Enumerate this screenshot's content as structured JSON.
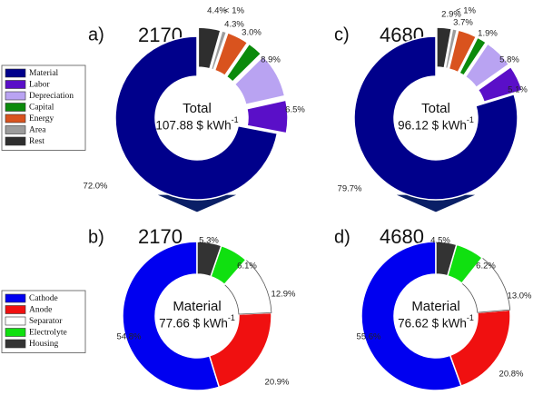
{
  "legends": [
    {
      "items": [
        {
          "label": "Material",
          "color": "#00008B"
        },
        {
          "label": "Labor",
          "color": "#5A0FC8"
        },
        {
          "label": "Depreciation",
          "color": "#B9A3F2"
        },
        {
          "label": "Capital",
          "color": "#0B8A0B"
        },
        {
          "label": "Energy",
          "color": "#D9531E"
        },
        {
          "label": "Area",
          "color": "#9C9C9C"
        },
        {
          "label": "Rest",
          "color": "#2E2E2E"
        }
      ]
    },
    {
      "items": [
        {
          "label": "Cathode",
          "color": "#0000F0"
        },
        {
          "label": "Anode",
          "color": "#F01010"
        },
        {
          "label": "Separator",
          "color": "#FFFFFF"
        },
        {
          "label": "Electrolyte",
          "color": "#10E010"
        },
        {
          "label": "Housing",
          "color": "#333333"
        }
      ]
    }
  ],
  "arrows": {
    "color": "#0A1F66"
  },
  "chart_data": [
    {
      "type": "pie",
      "panel_letter": "a)",
      "title": "2170",
      "center_label": "Total",
      "center_value": "107.88 $ kWh",
      "center_unit_exp": "-1",
      "slices": [
        {
          "category": "Material",
          "value": 72.0,
          "label": "72.0%",
          "exploded": false
        },
        {
          "category": "Labor",
          "value": 6.5,
          "label": "6.5%",
          "exploded": true
        },
        {
          "category": "Depreciation",
          "value": 8.9,
          "label": "8.9%",
          "exploded": true
        },
        {
          "category": "Capital",
          "value": 3.0,
          "label": "3.0%",
          "exploded": true
        },
        {
          "category": "Energy",
          "value": 4.3,
          "label": "4.3%",
          "exploded": true
        },
        {
          "category": "Area",
          "value": 0.9,
          "label": "< 1%",
          "exploded": true
        },
        {
          "category": "Rest",
          "value": 4.4,
          "label": "4.4%",
          "exploded": true
        }
      ]
    },
    {
      "type": "pie",
      "panel_letter": "c)",
      "title": "4680",
      "center_label": "Total",
      "center_value": "96.12 $ kWh",
      "center_unit_exp": "-1",
      "slices": [
        {
          "category": "Material",
          "value": 79.7,
          "label": "79.7%",
          "exploded": false
        },
        {
          "category": "Labor",
          "value": 5.1,
          "label": "5.1%",
          "exploded": true
        },
        {
          "category": "Depreciation",
          "value": 5.8,
          "label": "5.8%",
          "exploded": true
        },
        {
          "category": "Capital",
          "value": 1.9,
          "label": "1.9%",
          "exploded": true
        },
        {
          "category": "Energy",
          "value": 3.7,
          "label": "3.7%",
          "exploded": true
        },
        {
          "category": "Area",
          "value": 0.9,
          "label": "< 1%",
          "exploded": true
        },
        {
          "category": "Rest",
          "value": 2.9,
          "label": "2.9%",
          "exploded": true
        }
      ]
    },
    {
      "type": "pie",
      "panel_letter": "b)",
      "title": "2170",
      "center_label": "Material",
      "center_value": "77.66 $ kWh",
      "center_unit_exp": "-1",
      "slices": [
        {
          "category": "Cathode",
          "value": 54.8,
          "label": "54.8%",
          "exploded": false
        },
        {
          "category": "Anode",
          "value": 20.9,
          "label": "20.9%",
          "exploded": false
        },
        {
          "category": "Separator",
          "value": 12.9,
          "label": "12.9%",
          "exploded": false
        },
        {
          "category": "Electrolyte",
          "value": 6.1,
          "label": "6.1%",
          "exploded": false
        },
        {
          "category": "Housing",
          "value": 5.3,
          "label": "5.3%",
          "exploded": false
        }
      ]
    },
    {
      "type": "pie",
      "panel_letter": "d)",
      "title": "4680",
      "center_label": "Material",
      "center_value": "76.62 $ kWh",
      "center_unit_exp": "-1",
      "slices": [
        {
          "category": "Cathode",
          "value": 55.6,
          "label": "55.6%",
          "exploded": false
        },
        {
          "category": "Anode",
          "value": 20.8,
          "label": "20.8%",
          "exploded": false
        },
        {
          "category": "Separator",
          "value": 13.0,
          "label": "13.0%",
          "exploded": false
        },
        {
          "category": "Electrolyte",
          "value": 6.2,
          "label": "6.2%",
          "exploded": false
        },
        {
          "category": "Housing",
          "value": 4.5,
          "label": "4.5%",
          "exploded": false
        }
      ]
    }
  ]
}
